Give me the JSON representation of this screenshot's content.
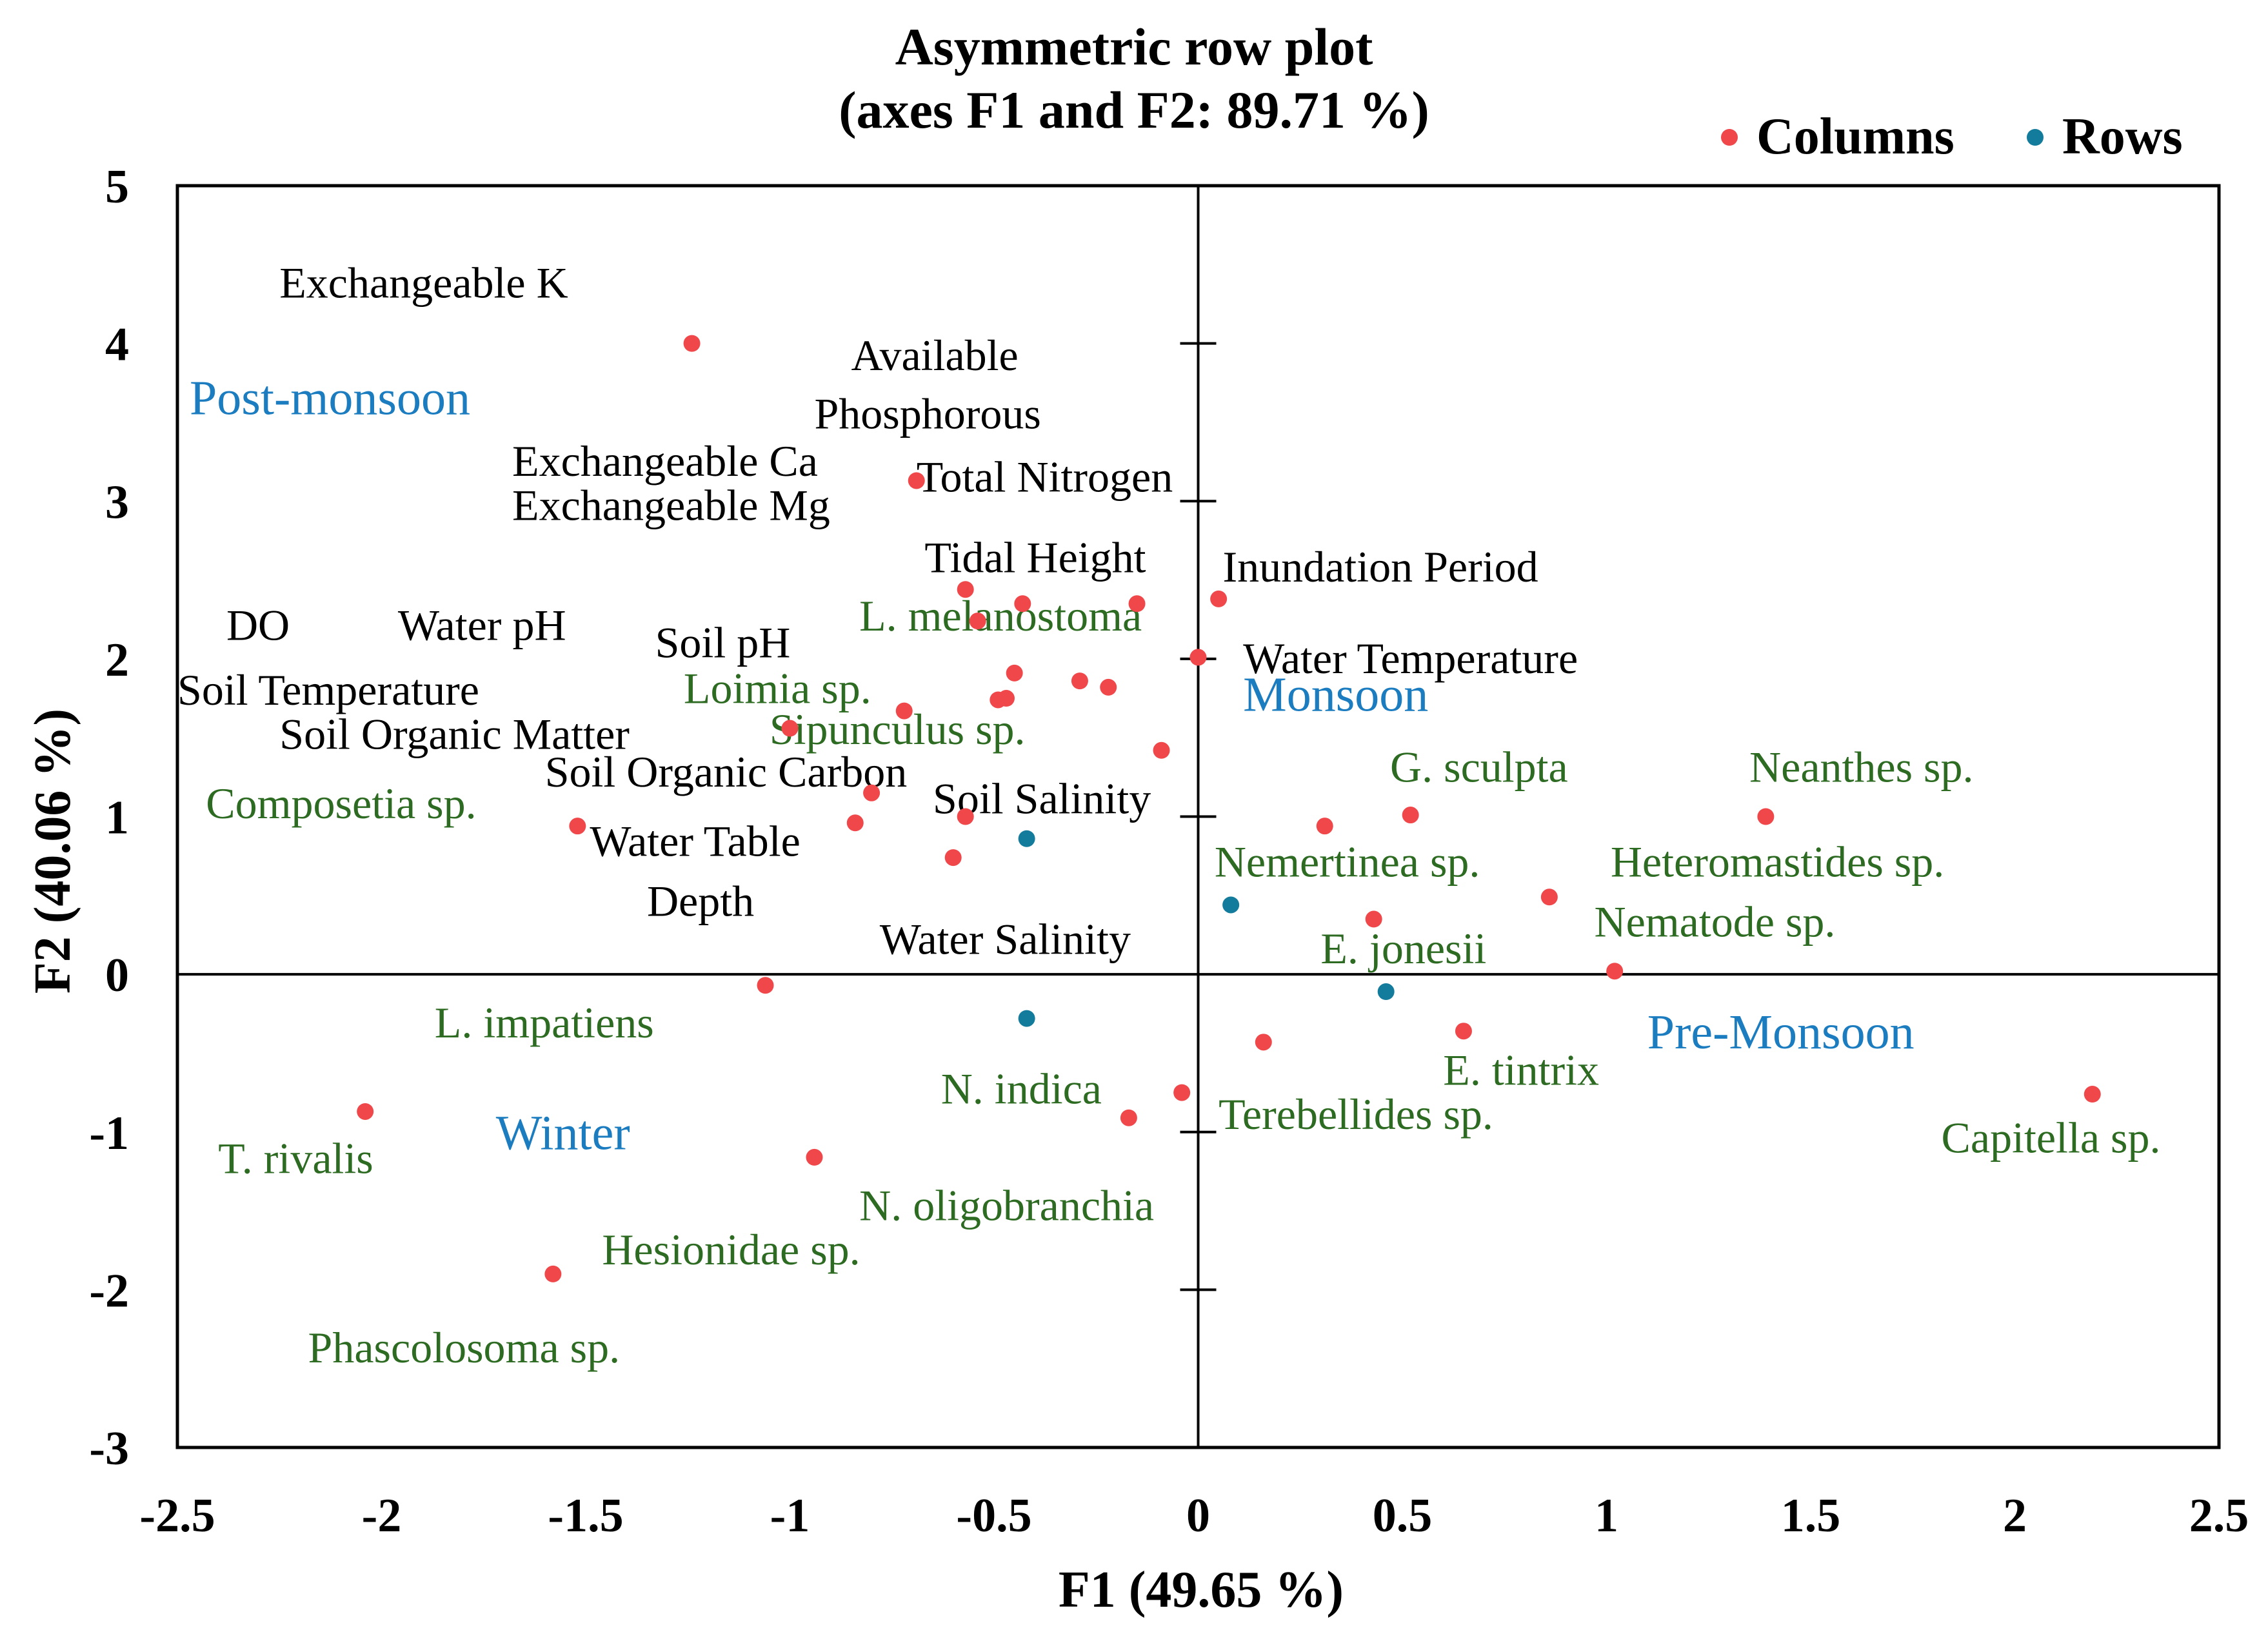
{
  "chart_data": {
    "type": "scatter",
    "title": "Asymmetric row plot",
    "subtitle": "(axes F1 and F2: 89.71 %)",
    "xlabel": "F1 (49.65 %)",
    "ylabel": "F2 (40.06 %)",
    "xlim": [
      -2.5,
      2.5
    ],
    "ylim": [
      -3,
      5
    ],
    "x_ticks": [
      -2.5,
      -2,
      -1.5,
      -1,
      -0.5,
      0,
      0.5,
      1,
      1.5,
      2,
      2.5
    ],
    "y_ticks": [
      -3,
      -2,
      -1,
      0,
      1,
      2,
      3,
      4,
      5
    ],
    "legend_position": "top-right",
    "colors": {
      "columns": "#f0474a",
      "rows": "#137b9b",
      "variable_label": "#000000",
      "species_label": "#2e6b22",
      "season_label": "#1b7cbf"
    },
    "series": [
      {
        "name": "Columns",
        "points": [
          {
            "x": -1.24,
            "y": 4.0
          },
          {
            "x": -0.69,
            "y": 3.13
          },
          {
            "x": -0.57,
            "y": 2.44
          },
          {
            "x": -0.54,
            "y": 2.24
          },
          {
            "x": -0.43,
            "y": 2.35
          },
          {
            "x": -0.15,
            "y": 2.35
          },
          {
            "x": 0.05,
            "y": 2.38
          },
          {
            "x": 0.0,
            "y": 2.01
          },
          {
            "x": -0.45,
            "y": 1.91
          },
          {
            "x": -0.29,
            "y": 1.86
          },
          {
            "x": -0.22,
            "y": 1.82
          },
          {
            "x": -0.49,
            "y": 1.74
          },
          {
            "x": -0.47,
            "y": 1.75
          },
          {
            "x": -0.72,
            "y": 1.67
          },
          {
            "x": -1.0,
            "y": 1.56
          },
          {
            "x": -0.09,
            "y": 1.42
          },
          {
            "x": -0.8,
            "y": 1.15
          },
          {
            "x": -0.57,
            "y": 1.0
          },
          {
            "x": -0.84,
            "y": 0.96
          },
          {
            "x": -1.52,
            "y": 0.94
          },
          {
            "x": -0.6,
            "y": 0.74
          },
          {
            "x": 0.31,
            "y": 0.94
          },
          {
            "x": 0.52,
            "y": 1.01
          },
          {
            "x": 1.39,
            "y": 1.0
          },
          {
            "x": 0.86,
            "y": 0.49
          },
          {
            "x": 0.43,
            "y": 0.35
          },
          {
            "x": 1.02,
            "y": 0.02
          },
          {
            "x": -1.06,
            "y": -0.07
          },
          {
            "x": 0.16,
            "y": -0.43
          },
          {
            "x": 0.65,
            "y": -0.36
          },
          {
            "x": -0.04,
            "y": -0.75
          },
          {
            "x": -0.17,
            "y": -0.91
          },
          {
            "x": -2.04,
            "y": -0.87
          },
          {
            "x": -0.94,
            "y": -1.16
          },
          {
            "x": -1.58,
            "y": -1.9
          },
          {
            "x": 2.19,
            "y": -0.76
          }
        ]
      },
      {
        "name": "Rows",
        "points": [
          {
            "x": -0.42,
            "y": 0.86
          },
          {
            "x": 0.08,
            "y": 0.44
          },
          {
            "x": 0.46,
            "y": -0.11
          },
          {
            "x": -0.42,
            "y": -0.28
          }
        ]
      }
    ],
    "labels": [
      {
        "text": "Exchangeable K",
        "x": -2.25,
        "y": 4.29,
        "kind": "variable"
      },
      {
        "text": "Available",
        "x": -0.85,
        "y": 3.83,
        "kind": "variable"
      },
      {
        "text": "Phosphorous",
        "x": -0.94,
        "y": 3.46,
        "kind": "variable"
      },
      {
        "text": "Exchangeable Ca",
        "x": -1.68,
        "y": 3.16,
        "kind": "variable"
      },
      {
        "text": "Exchangeable Mg",
        "x": -1.68,
        "y": 2.88,
        "kind": "variable"
      },
      {
        "text": "Total Nitrogen",
        "x": -0.69,
        "y": 3.06,
        "kind": "variable"
      },
      {
        "text": "Tidal Height",
        "x": -0.67,
        "y": 2.55,
        "kind": "variable"
      },
      {
        "text": "Inundation Period",
        "x": 0.06,
        "y": 2.49,
        "kind": "variable"
      },
      {
        "text": "DO",
        "x": -2.38,
        "y": 2.12,
        "kind": "variable"
      },
      {
        "text": "Water pH",
        "x": -1.96,
        "y": 2.12,
        "kind": "variable"
      },
      {
        "text": "Soil pH",
        "x": -1.33,
        "y": 2.01,
        "kind": "variable"
      },
      {
        "text": "Water Temperature",
        "x": 0.11,
        "y": 1.91,
        "kind": "variable"
      },
      {
        "text": "Soil Temperature",
        "x": -2.5,
        "y": 1.71,
        "kind": "variable"
      },
      {
        "text": "Soil Organic Matter",
        "x": -2.25,
        "y": 1.43,
        "kind": "variable"
      },
      {
        "text": "Soil Organic Carbon",
        "x": -1.6,
        "y": 1.19,
        "kind": "variable"
      },
      {
        "text": "Soil Salinity",
        "x": -0.65,
        "y": 1.02,
        "kind": "variable"
      },
      {
        "text": "Water Table",
        "x": -1.49,
        "y": 0.75,
        "kind": "variable"
      },
      {
        "text": "Depth",
        "x": -1.35,
        "y": 0.37,
        "kind": "variable"
      },
      {
        "text": "Water Salinity",
        "x": -0.78,
        "y": 0.13,
        "kind": "variable"
      },
      {
        "text": "L.  melanostoma",
        "x": -0.83,
        "y": 2.18,
        "kind": "species"
      },
      {
        "text": "Loimia  sp.",
        "x": -1.26,
        "y": 1.72,
        "kind": "species"
      },
      {
        "text": "Sipunculus  sp.",
        "x": -1.05,
        "y": 1.46,
        "kind": "species"
      },
      {
        "text": "Composetia sp.",
        "x": -2.43,
        "y": 0.99,
        "kind": "species"
      },
      {
        "text": "G. sculpta",
        "x": 0.47,
        "y": 1.22,
        "kind": "species"
      },
      {
        "text": "Neanthes  sp.",
        "x": 1.35,
        "y": 1.22,
        "kind": "species"
      },
      {
        "text": "Nemertinea sp.",
        "x": 0.04,
        "y": 0.62,
        "kind": "species"
      },
      {
        "text": "Heteromastides sp.",
        "x": 1.01,
        "y": 0.62,
        "kind": "species"
      },
      {
        "text": "Nematode  sp.",
        "x": 0.97,
        "y": 0.24,
        "kind": "species"
      },
      {
        "text": "E. jonesii",
        "x": 0.3,
        "y": 0.07,
        "kind": "species"
      },
      {
        "text": "L. impatiens",
        "x": -1.87,
        "y": -0.4,
        "kind": "species"
      },
      {
        "text": "E. tintrix",
        "x": 0.6,
        "y": -0.7,
        "kind": "species"
      },
      {
        "text": "N. indica",
        "x": -0.63,
        "y": -0.82,
        "kind": "species"
      },
      {
        "text": "Terebellides sp.",
        "x": 0.05,
        "y": -0.98,
        "kind": "species"
      },
      {
        "text": "Capitella  sp.",
        "x": 1.82,
        "y": -1.13,
        "kind": "species"
      },
      {
        "text": "T. rivalis",
        "x": -2.4,
        "y": -1.26,
        "kind": "species"
      },
      {
        "text": "N. oligobranchia",
        "x": -0.83,
        "y": -1.56,
        "kind": "species"
      },
      {
        "text": "Hesionidae  sp.",
        "x": -1.46,
        "y": -1.84,
        "kind": "species"
      },
      {
        "text": "Phascolosoma  sp.",
        "x": -2.18,
        "y": -2.46,
        "kind": "species"
      },
      {
        "text": "Post-monsoon",
        "x": -2.47,
        "y": 3.55,
        "kind": "season"
      },
      {
        "text": "Monsoon",
        "x": 0.11,
        "y": 1.67,
        "kind": "season"
      },
      {
        "text": "Pre-Monsoon",
        "x": 1.1,
        "y": -0.47,
        "kind": "season"
      },
      {
        "text": "Winter",
        "x": -1.72,
        "y": -1.11,
        "kind": "season"
      }
    ]
  }
}
